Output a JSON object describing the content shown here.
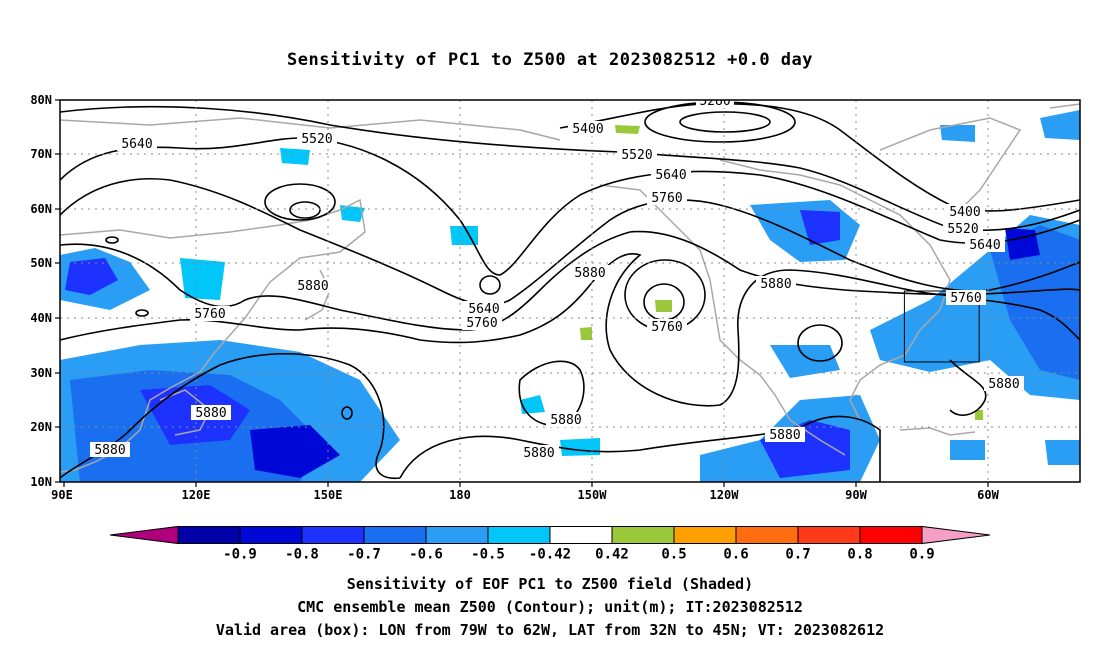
{
  "title": "Sensitivity of PC1 to Z500 at 2023082512 +0.0 day",
  "lat_labels": [
    "80N",
    "70N",
    "60N",
    "50N",
    "40N",
    "30N",
    "20N",
    "10N"
  ],
  "lon_labels": [
    "90E",
    "120E",
    "150E",
    "180",
    "150W",
    "120W",
    "90W",
    "60W"
  ],
  "contour_labels": [
    {
      "text": "5280"
    },
    {
      "text": "5400"
    },
    {
      "text": "5400"
    },
    {
      "text": "5520"
    },
    {
      "text": "5520"
    },
    {
      "text": "5520"
    },
    {
      "text": "5640"
    },
    {
      "text": "5640"
    },
    {
      "text": "5640"
    },
    {
      "text": "5640"
    },
    {
      "text": "5760"
    },
    {
      "text": "5760"
    },
    {
      "text": "5760"
    },
    {
      "text": "5760"
    },
    {
      "text": "5760"
    },
    {
      "text": "5880"
    },
    {
      "text": "5880"
    },
    {
      "text": "5880"
    },
    {
      "text": "5880"
    },
    {
      "text": "5880"
    },
    {
      "text": "5880"
    },
    {
      "text": "5880"
    },
    {
      "text": "5880"
    },
    {
      "text": "5880"
    }
  ],
  "colorbar": {
    "colors": [
      "#b0007d",
      "#0000a8",
      "#0008d8",
      "#1e32ff",
      "#1a6ff0",
      "#2a9df5",
      "#00c6f9",
      "#ffffff",
      "#9ac83a",
      "#ff9f00",
      "#ff6d10",
      "#ff3a1a",
      "#ff0000",
      "#f59fc6"
    ],
    "labels": [
      "-0.9",
      "-0.8",
      "-0.7",
      "-0.6",
      "-0.5",
      "-0.42",
      "0.42",
      "0.5",
      "0.6",
      "0.7",
      "0.8",
      "0.9"
    ]
  },
  "valid_box": {
    "lon_west": -79,
    "lon_east": -62,
    "lat_south": 32,
    "lat_north": 45
  },
  "captions": [
    "Sensitivity of EOF PC1 to Z500 field (Shaded)",
    "CMC ensemble mean Z500 (Contour); unit(m); IT:2023082512",
    "Valid area (box): LON from 79W to 62W, LAT from 32N to 45N; VT: 2023082612"
  ]
}
